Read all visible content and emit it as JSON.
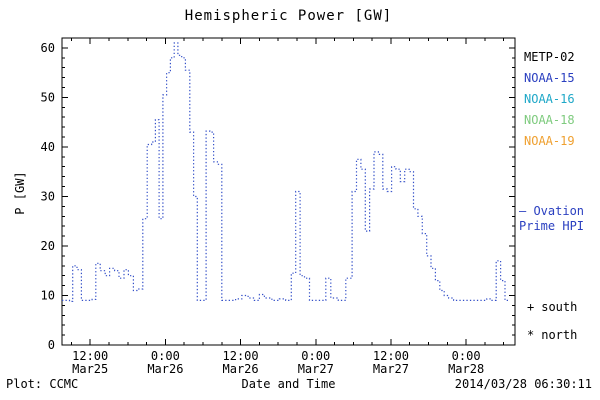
{
  "footer": {
    "plot_source": "Plot: CCMC",
    "timestamp": "2014/03/28 06:30:11"
  },
  "legend": {
    "satellites": [
      {
        "label": "METP-02",
        "color": "#000000"
      },
      {
        "label": "NOAA-15",
        "color": "#2a3fc0"
      },
      {
        "label": "NOAA-16",
        "color": "#1fa8c8"
      },
      {
        "label": "NOAA-18",
        "color": "#7ecb7e"
      },
      {
        "label": "NOAA-19",
        "color": "#efa030"
      }
    ],
    "ovation": {
      "text": "— Ovation\nPrime HPI",
      "color": "#2a3fc0"
    },
    "markers": [
      {
        "symbol": "+",
        "label": "south"
      },
      {
        "symbol": "*",
        "label": "north"
      }
    ]
  },
  "chart_data": {
    "type": "line",
    "title": "Hemispheric Power [GW]",
    "xlabel": "Date and Time",
    "ylabel": "P [GW]",
    "line_color": "#3450c8",
    "line_style": "dotted, step-after",
    "legend_position": "right",
    "grid": false,
    "ylim": [
      0,
      62
    ],
    "yticks": [
      0,
      10,
      20,
      30,
      40,
      50,
      60
    ],
    "y_minor_step": 2,
    "x_epoch": "hours since 2014-03-25 00:00 UT",
    "xlim_hours": [
      7.5,
      79.8
    ],
    "x_minor_step_hours": 3,
    "x_ticks": [
      {
        "hour": 12,
        "time": "12:00",
        "date": "Mar25"
      },
      {
        "hour": 24,
        "time": "0:00",
        "date": "Mar26"
      },
      {
        "hour": 36,
        "time": "12:00",
        "date": "Mar26"
      },
      {
        "hour": 48,
        "time": "0:00",
        "date": "Mar27"
      },
      {
        "hour": 60,
        "time": "12:00",
        "date": "Mar27"
      },
      {
        "hour": 72,
        "time": "0:00",
        "date": "Mar28"
      }
    ],
    "series": [
      {
        "name": "Ovation Prime Hemispheric Power Index",
        "units": "GW",
        "points": [
          [
            7.5,
            9
          ],
          [
            8.7,
            8.8
          ],
          [
            9.2,
            16
          ],
          [
            9.9,
            15.2
          ],
          [
            10.6,
            9
          ],
          [
            11.5,
            9
          ],
          [
            12.3,
            9.2
          ],
          [
            12.9,
            16.5
          ],
          [
            13.6,
            15
          ],
          [
            14.4,
            14
          ],
          [
            15.1,
            15.5
          ],
          [
            15.9,
            15
          ],
          [
            16.6,
            13.5
          ],
          [
            17.4,
            15.2
          ],
          [
            18.1,
            14
          ],
          [
            18.9,
            11
          ],
          [
            19.6,
            11.3
          ],
          [
            20.4,
            25.5
          ],
          [
            21.1,
            40.5
          ],
          [
            21.8,
            41
          ],
          [
            22.4,
            45.5
          ],
          [
            23.0,
            25.5
          ],
          [
            23.6,
            50.5
          ],
          [
            24.2,
            55
          ],
          [
            24.8,
            58
          ],
          [
            25.4,
            61
          ],
          [
            26.0,
            58.5
          ],
          [
            26.6,
            58
          ],
          [
            27.2,
            55.5
          ],
          [
            27.9,
            43
          ],
          [
            28.5,
            30
          ],
          [
            29.1,
            9
          ],
          [
            29.9,
            9
          ],
          [
            30.5,
            43.2
          ],
          [
            31.1,
            43
          ],
          [
            31.7,
            37
          ],
          [
            32.3,
            36.5
          ],
          [
            33.0,
            9
          ],
          [
            34.0,
            9
          ],
          [
            35.2,
            9.3
          ],
          [
            36.2,
            10
          ],
          [
            37.2,
            9.5
          ],
          [
            38.2,
            9
          ],
          [
            39.0,
            10.2
          ],
          [
            39.8,
            9.5
          ],
          [
            41.0,
            9
          ],
          [
            42.2,
            9.3
          ],
          [
            43.2,
            9
          ],
          [
            44.1,
            14.5
          ],
          [
            44.8,
            31
          ],
          [
            45.5,
            14
          ],
          [
            46.2,
            13.5
          ],
          [
            47.0,
            9
          ],
          [
            48.3,
            9
          ],
          [
            49.6,
            13.5
          ],
          [
            50.4,
            9.5
          ],
          [
            51.6,
            9
          ],
          [
            52.8,
            13.5
          ],
          [
            53.8,
            31
          ],
          [
            54.5,
            37.5
          ],
          [
            55.2,
            35.5
          ],
          [
            55.9,
            23
          ],
          [
            56.6,
            31.5
          ],
          [
            57.3,
            39
          ],
          [
            58.0,
            38.5
          ],
          [
            58.7,
            31.5
          ],
          [
            59.4,
            31
          ],
          [
            60.1,
            36
          ],
          [
            60.8,
            35.5
          ],
          [
            61.5,
            33
          ],
          [
            62.2,
            35.5
          ],
          [
            62.9,
            35
          ],
          [
            63.6,
            27.5
          ],
          [
            64.3,
            26
          ],
          [
            65.0,
            22.5
          ],
          [
            65.7,
            18
          ],
          [
            66.4,
            15.5
          ],
          [
            67.1,
            13
          ],
          [
            67.8,
            11
          ],
          [
            68.5,
            10
          ],
          [
            69.2,
            9.5
          ],
          [
            70.0,
            9
          ],
          [
            71.5,
            9
          ],
          [
            73.0,
            9
          ],
          [
            74.3,
            9
          ],
          [
            75.3,
            9.3
          ],
          [
            76.0,
            9
          ],
          [
            76.8,
            17
          ],
          [
            77.5,
            13
          ],
          [
            78.2,
            9
          ],
          [
            78.8,
            9
          ]
        ]
      }
    ]
  }
}
